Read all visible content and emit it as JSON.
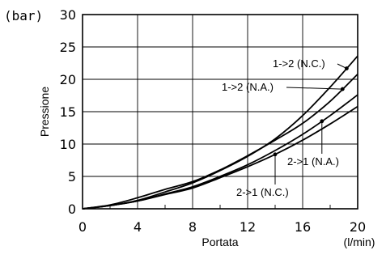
{
  "chart_data": {
    "type": "line",
    "xlabel": "Portata",
    "ylabel": "Pressione",
    "x_unit": "(l/min)",
    "y_unit": "(bar)",
    "xlim": [
      0,
      20
    ],
    "ylim": [
      0,
      30
    ],
    "x_ticks": [
      "0",
      "4",
      "8",
      "12",
      "16",
      "20"
    ],
    "y_ticks": [
      "0",
      "5",
      "10",
      "15",
      "20",
      "25",
      "30"
    ],
    "grid": true,
    "series": [
      {
        "name": "1->2 (N.C.)",
        "x": [
          0,
          2,
          4,
          6,
          8,
          10,
          12,
          14,
          16,
          18,
          20
        ],
        "y": [
          0,
          0.5,
          1.3,
          2.6,
          4.0,
          5.9,
          8.1,
          10.8,
          14.4,
          18.8,
          23.6
        ]
      },
      {
        "name": "1->2 (N.A.)",
        "x": [
          0,
          2,
          4,
          6,
          8,
          10,
          12,
          14,
          16,
          18,
          20
        ],
        "y": [
          0,
          0.6,
          1.7,
          3.0,
          4.2,
          6.0,
          8.2,
          10.6,
          13.2,
          16.6,
          20.8
        ]
      },
      {
        "name": "2->1 (N.A.)",
        "x": [
          0,
          2,
          4,
          6,
          8,
          10,
          12,
          14,
          16,
          18,
          20
        ],
        "y": [
          0,
          0.5,
          1.2,
          2.3,
          3.4,
          5.0,
          6.8,
          9.0,
          11.5,
          14.4,
          17.6
        ]
      },
      {
        "name": "2->1 (N.C.)",
        "x": [
          0,
          2,
          4,
          6,
          8,
          10,
          12,
          14,
          16,
          18,
          20
        ],
        "y": [
          0,
          0.5,
          1.2,
          2.2,
          3.2,
          4.8,
          6.5,
          8.4,
          10.6,
          13.1,
          15.8
        ]
      }
    ],
    "annotations": [
      {
        "series": 0,
        "text": "1->2 (N.C.)",
        "at_x": 19.2
      },
      {
        "series": 1,
        "text": "1->2 (N.A.)",
        "at_x": 18.9
      },
      {
        "series": 2,
        "text": "2->1 (N.A.)",
        "at_x": 17.4
      },
      {
        "series": 3,
        "text": "2->1 (N.C.)",
        "at_x": 14.0
      }
    ]
  }
}
